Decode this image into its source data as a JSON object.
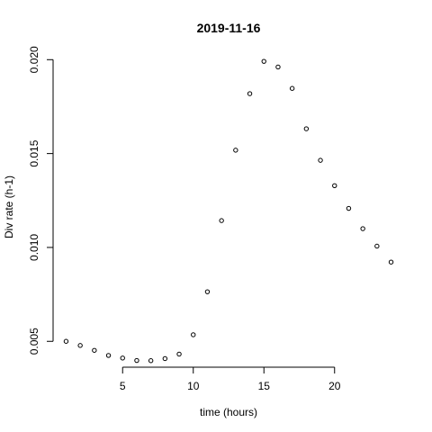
{
  "chart_data": {
    "type": "scatter",
    "title": "2019-11-16",
    "xlabel": "time (hours)",
    "ylabel": "Div rate (h-1)",
    "x": [
      1,
      2,
      3,
      4,
      5,
      6,
      7,
      8,
      9,
      10,
      11,
      12,
      13,
      14,
      15,
      16,
      17,
      18,
      19,
      20,
      21,
      22,
      23,
      24
    ],
    "y": [
      0.005,
      0.00478,
      0.00452,
      0.00425,
      0.00411,
      0.00398,
      0.00397,
      0.00408,
      0.00432,
      0.00535,
      0.00764,
      0.01143,
      0.01518,
      0.01819,
      0.01991,
      0.01961,
      0.01847,
      0.01632,
      0.01464,
      0.01329,
      0.01208,
      0.011,
      0.01007,
      0.00922
    ],
    "xticks": [
      5,
      10,
      15,
      20
    ],
    "xtick_labels": [
      "5",
      "10",
      "15",
      "20"
    ],
    "yticks": [
      0.005,
      0.01,
      0.015,
      0.02
    ],
    "ytick_labels": [
      "0.005",
      "0.010",
      "0.015",
      "0.020"
    ],
    "xlim": [
      0.08,
      24.92
    ],
    "ylim": [
      0.003958,
      0.02035
    ],
    "grid": false,
    "marker": "open-circle",
    "color": "#000000"
  }
}
